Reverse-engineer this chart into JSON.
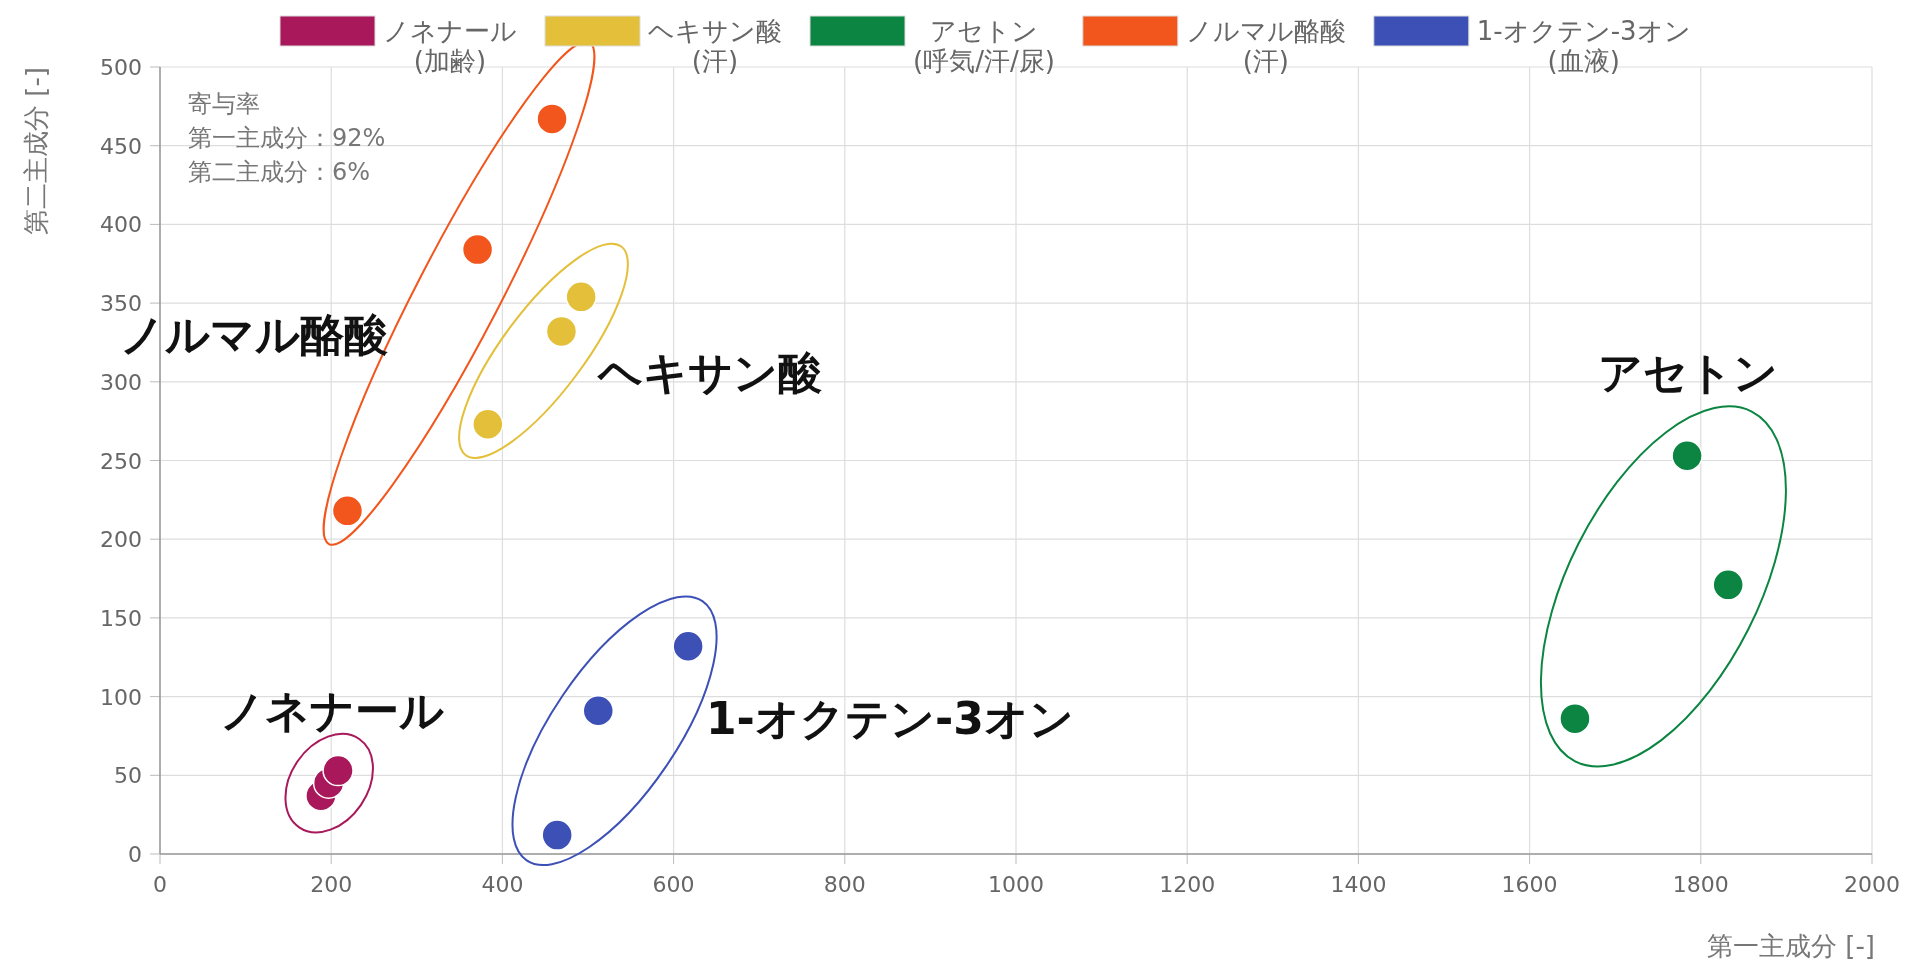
{
  "chart_data": {
    "type": "scatter",
    "xlabel": "第一主成分 [-]",
    "ylabel": "第二主成分 [-]",
    "xlim": [
      0,
      2000
    ],
    "ylim": [
      0,
      500
    ],
    "xticks": [
      0,
      200,
      400,
      600,
      800,
      1000,
      1200,
      1400,
      1600,
      1800,
      2000
    ],
    "yticks": [
      0,
      50,
      100,
      150,
      200,
      250,
      300,
      350,
      400,
      450,
      500
    ],
    "grid": true,
    "legend": "top",
    "marker": "circle",
    "series": [
      {
        "name": "ノネナール\n(加齢)",
        "color": "#a8185a",
        "x": [
          188,
          197,
          208
        ],
        "values": [
          37,
          45,
          53
        ]
      },
      {
        "name": "ヘキサン酸\n(汗)",
        "color": "#e3bf3a",
        "x": [
          492,
          469,
          383
        ],
        "values": [
          354,
          332,
          273
        ]
      },
      {
        "name": "アセトン\n(呼気/汗/尿)",
        "color": "#0b8541",
        "x": [
          1784,
          1832,
          1653
        ],
        "values": [
          253,
          171,
          86
        ]
      },
      {
        "name": "ノルマル酪酸\n(汗)",
        "color": "#f2561d",
        "x": [
          458,
          371,
          219
        ],
        "values": [
          467,
          384,
          218
        ]
      },
      {
        "name": "1-オクテン-3オン\n(血液)",
        "color": "#3d50b6",
        "x": [
          617,
          512,
          464
        ],
        "values": [
          132,
          91,
          12
        ]
      }
    ],
    "annotations": [
      "寄与率",
      "第一主成分：92%",
      "第二主成分：6%",
      "ノルマル酪酸",
      "ヘキサン酸",
      "アセトン",
      "ノネナール",
      "1-オクテン-3オン"
    ]
  }
}
